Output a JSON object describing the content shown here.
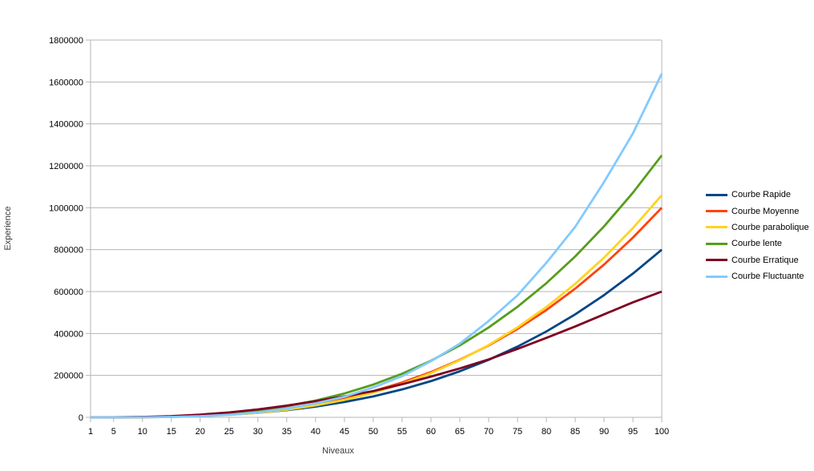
{
  "chart_data": {
    "type": "line",
    "title": "",
    "xlabel": "Niveaux",
    "ylabel": "Experience",
    "xlim": [
      1,
      100
    ],
    "ylim": [
      0,
      1800000
    ],
    "y_tick_step": 200000,
    "y_ticks": [
      0,
      200000,
      400000,
      600000,
      800000,
      1000000,
      1200000,
      1400000,
      1600000,
      1800000
    ],
    "x_ticks": [
      1,
      5,
      10,
      15,
      20,
      25,
      30,
      35,
      40,
      45,
      50,
      55,
      60,
      65,
      70,
      75,
      80,
      85,
      90,
      95,
      100
    ],
    "grid": "horizontal",
    "legend_position": "right",
    "x": [
      1,
      5,
      10,
      15,
      20,
      25,
      30,
      35,
      40,
      45,
      50,
      55,
      60,
      65,
      70,
      75,
      80,
      85,
      90,
      95,
      100
    ],
    "series": [
      {
        "name": "Courbe Rapide",
        "color": "#004586",
        "values": [
          1,
          100,
          800,
          2700,
          6400,
          12500,
          21600,
          34300,
          51200,
          72900,
          100000,
          133100,
          172800,
          219700,
          274400,
          337500,
          409600,
          491300,
          583200,
          685900,
          800000
        ]
      },
      {
        "name": "Courbe Moyenne",
        "color": "#FF420E",
        "values": [
          1,
          125,
          1000,
          3375,
          8000,
          15625,
          27000,
          42875,
          64000,
          91125,
          125000,
          166375,
          216000,
          274625,
          343000,
          421875,
          512000,
          614125,
          729000,
          857375,
          1000000
        ]
      },
      {
        "name": "Courbe parabolique",
        "color": "#FFD320",
        "values": [
          0,
          135,
          560,
          2035,
          5460,
          11735,
          21760,
          36435,
          56660,
          83335,
          117360,
          159635,
          211060,
          272535,
          344960,
          429235,
          526260,
          636935,
          762160,
          902835,
          1059860
        ]
      },
      {
        "name": "Courbe lente",
        "color": "#579D1C",
        "values": [
          1,
          156,
          1250,
          4219,
          10000,
          19531,
          33750,
          53594,
          80000,
          113906,
          156250,
          207969,
          270000,
          343281,
          428750,
          527344,
          640000,
          767656,
          911250,
          1071719,
          1250000
        ]
      },
      {
        "name": "Courbe Erratique",
        "color": "#7E0021",
        "values": [
          2,
          237,
          1800,
          5737,
          12800,
          23437,
          37800,
          55737,
          76800,
          100237,
          125000,
          158056,
          194400,
          233431,
          276458,
          326531,
          378880,
          433572,
          491346,
          548720,
          600000
        ]
      },
      {
        "name": "Courbe Fluctuante",
        "color": "#83CAFF",
        "values": [
          0,
          65,
          540,
          1957,
          5440,
          12187,
          23760,
          42017,
          66560,
          98415,
          142500,
          196322,
          267840,
          351520,
          459620,
          582187,
          737280,
          908905,
          1122660,
          1354652,
          1640000
        ]
      }
    ],
    "colors": {
      "background": "#FFFFFF",
      "grid_line": "#B5B5B5",
      "axis_line": "#B5B5B5",
      "tick_label": "#000000",
      "axis_title": "#3A3A3A",
      "legend_text": "#000000"
    }
  }
}
